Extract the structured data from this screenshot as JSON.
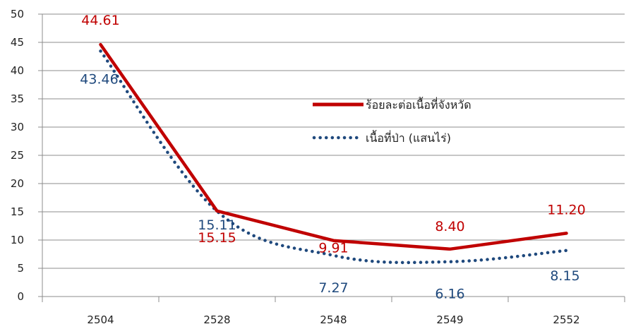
{
  "chart_data": {
    "type": "line",
    "title": "",
    "xlabel": "",
    "ylabel": "",
    "categories": [
      "2504",
      "2528",
      "2548",
      "2549",
      "2552"
    ],
    "ylim": [
      0,
      50
    ],
    "yticks": [
      0,
      5,
      10,
      15,
      20,
      25,
      30,
      35,
      40,
      45,
      50
    ],
    "grid": true,
    "legend_position": "center-right",
    "series": [
      {
        "name": "ร้อยละต่อเนื้อที่จังหวัด",
        "values": [
          44.61,
          15.15,
          9.91,
          8.4,
          11.2
        ],
        "labels": [
          "44.61",
          "15.15",
          "9.91",
          "8.40",
          "11.20"
        ],
        "color": "#c00000",
        "style": "solid"
      },
      {
        "name": "เนื้อที่ป่า (แสนไร่)",
        "values": [
          43.46,
          15.11,
          7.27,
          6.16,
          8.15
        ],
        "labels": [
          "43.46",
          "15.11",
          "7.27",
          "6.16",
          "8.15"
        ],
        "color": "#1f497d",
        "style": "dotted"
      }
    ]
  }
}
